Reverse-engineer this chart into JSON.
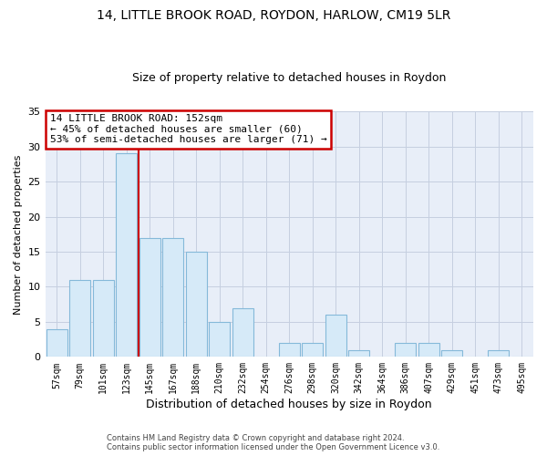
{
  "title1": "14, LITTLE BROOK ROAD, ROYDON, HARLOW, CM19 5LR",
  "title2": "Size of property relative to detached houses in Roydon",
  "xlabel": "Distribution of detached houses by size in Roydon",
  "ylabel": "Number of detached properties",
  "footer1": "Contains HM Land Registry data © Crown copyright and database right 2024.",
  "footer2": "Contains public sector information licensed under the Open Government Licence v3.0.",
  "bin_labels": [
    "57sqm",
    "79sqm",
    "101sqm",
    "123sqm",
    "145sqm",
    "167sqm",
    "188sqm",
    "210sqm",
    "232sqm",
    "254sqm",
    "276sqm",
    "298sqm",
    "320sqm",
    "342sqm",
    "364sqm",
    "386sqm",
    "407sqm",
    "429sqm",
    "451sqm",
    "473sqm",
    "495sqm"
  ],
  "bar_values": [
    4,
    11,
    11,
    29,
    17,
    17,
    15,
    5,
    7,
    0,
    2,
    2,
    6,
    1,
    0,
    2,
    2,
    1,
    0,
    1,
    0
  ],
  "bar_color": "#d6eaf8",
  "bar_edgecolor": "#85b9d9",
  "property_line_label": "14 LITTLE BROOK ROAD: 152sqm",
  "annotation_line1": "← 45% of detached houses are smaller (60)",
  "annotation_line2": "53% of semi-detached houses are larger (71) →",
  "annotation_box_facecolor": "#ffffff",
  "annotation_box_edgecolor": "#cc0000",
  "ylim": [
    0,
    35
  ],
  "yticks": [
    0,
    5,
    10,
    15,
    20,
    25,
    30,
    35
  ],
  "bg_color": "#ffffff",
  "plot_bg_color": "#e8eef8",
  "grid_color": "#c5cfe0"
}
